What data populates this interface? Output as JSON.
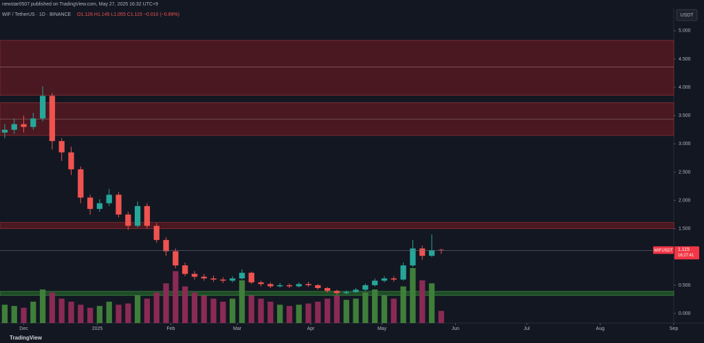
{
  "header": {
    "publisher": "newstar0507 published on TradingView.com, May 27, 2025 16:32 UTC+9",
    "symbol": "WIF / TetherUS · 1D · BINANCE",
    "quote": "O1.126 H1.145 L1.055 C1.115 −0.010 (−0.89%)"
  },
  "brand": "TradingView",
  "currency": "USDT",
  "chart_data": {
    "type": "candlestick",
    "categories": [
      null,
      null,
      null,
      null,
      null,
      null,
      null,
      null,
      null,
      null,
      null,
      null,
      null,
      null,
      null,
      null,
      null,
      null,
      null,
      null,
      null,
      null,
      null,
      null,
      null,
      null,
      null,
      null,
      null,
      null,
      null,
      null,
      null,
      null,
      null,
      null,
      null,
      null,
      null,
      null,
      null,
      null,
      null,
      null,
      null,
      null,
      null
    ],
    "open": [
      3.2,
      3.25,
      3.35,
      3.3,
      3.45,
      3.85,
      3.05,
      2.85,
      2.55,
      2.05,
      1.85,
      1.95,
      2.1,
      1.75,
      1.55,
      1.9,
      1.55,
      1.3,
      1.1,
      0.85,
      0.7,
      0.65,
      0.62,
      0.6,
      0.58,
      0.62,
      0.72,
      0.55,
      0.52,
      0.48,
      0.5,
      0.48,
      0.52,
      0.5,
      0.45,
      0.4,
      0.36,
      0.38,
      0.42,
      0.5,
      0.58,
      0.62,
      0.6,
      0.85,
      1.15,
      1.02,
      1.126
    ],
    "high": [
      3.35,
      3.45,
      3.5,
      3.55,
      4.02,
      3.9,
      3.1,
      2.95,
      2.6,
      2.1,
      2.02,
      2.2,
      2.15,
      1.8,
      1.98,
      1.95,
      1.6,
      1.35,
      1.15,
      0.9,
      0.75,
      0.7,
      0.67,
      0.64,
      0.66,
      0.78,
      0.74,
      0.58,
      0.55,
      0.54,
      0.53,
      0.55,
      0.56,
      0.52,
      0.47,
      0.42,
      0.41,
      0.45,
      0.53,
      0.62,
      0.66,
      0.66,
      0.9,
      1.3,
      1.2,
      1.4,
      1.145
    ],
    "low": [
      3.1,
      3.18,
      3.2,
      3.25,
      3.4,
      2.9,
      2.7,
      2.45,
      1.95,
      1.75,
      1.8,
      1.9,
      1.7,
      1.48,
      1.52,
      1.5,
      1.25,
      1.02,
      0.8,
      0.66,
      0.6,
      0.58,
      0.56,
      0.54,
      0.55,
      0.6,
      0.52,
      0.48,
      0.45,
      0.46,
      0.45,
      0.46,
      0.47,
      0.42,
      0.37,
      0.33,
      0.34,
      0.36,
      0.4,
      0.48,
      0.55,
      0.56,
      0.58,
      0.82,
      0.95,
      1.0,
      1.055
    ],
    "close": [
      3.25,
      3.35,
      3.3,
      3.45,
      3.85,
      3.05,
      2.85,
      2.55,
      2.05,
      1.85,
      1.95,
      2.1,
      1.75,
      1.55,
      1.9,
      1.55,
      1.3,
      1.1,
      0.85,
      0.7,
      0.65,
      0.62,
      0.6,
      0.58,
      0.62,
      0.72,
      0.55,
      0.52,
      0.48,
      0.5,
      0.48,
      0.52,
      0.5,
      0.45,
      0.4,
      0.36,
      0.38,
      0.42,
      0.5,
      0.58,
      0.62,
      0.6,
      0.85,
      1.15,
      1.02,
      1.12,
      1.115
    ],
    "volume": [
      30,
      28,
      25,
      35,
      55,
      50,
      40,
      35,
      30,
      25,
      28,
      35,
      30,
      32,
      45,
      40,
      50,
      65,
      85,
      60,
      50,
      45,
      40,
      35,
      40,
      70,
      45,
      40,
      35,
      30,
      28,
      30,
      32,
      35,
      40,
      45,
      38,
      40,
      50,
      55,
      45,
      40,
      60,
      90,
      70,
      65,
      20
    ],
    "up_color": "#26a69a",
    "down_color": "#ef5350",
    "volume_up_color": "#3f7f3a",
    "volume_down_color": "#8a2a55",
    "xlim": [
      -0.5,
      70.5
    ],
    "xticks": [
      {
        "value": 2,
        "label": "Dec"
      },
      {
        "value": 9.75,
        "label": "2025"
      },
      {
        "value": 17.5,
        "label": "Feb"
      },
      {
        "value": 24.5,
        "label": "Mar"
      },
      {
        "value": 32.25,
        "label": "Apr"
      },
      {
        "value": 39.75,
        "label": "May"
      },
      {
        "value": 47.5,
        "label": "Jun"
      },
      {
        "value": 55,
        "label": "Jul"
      },
      {
        "value": 62.75,
        "label": "Aug"
      },
      {
        "value": 70.5,
        "label": "Sep"
      }
    ],
    "ylim": [
      -0.17,
      5.4
    ],
    "yticks": [
      {
        "value": 0,
        "label": "0.000"
      },
      {
        "value": 0.5,
        "label": "0.500"
      },
      {
        "value": 1,
        "label": "1.000"
      },
      {
        "value": 1.5,
        "label": "1.500"
      },
      {
        "value": 2,
        "label": "2.000"
      },
      {
        "value": 2.5,
        "label": "2.500"
      },
      {
        "value": 3,
        "label": "3.000"
      },
      {
        "value": 3.5,
        "label": "3.500"
      },
      {
        "value": 4,
        "label": "4.000"
      },
      {
        "value": 4.5,
        "label": "4.500"
      },
      {
        "value": 5,
        "label": "5.000"
      }
    ],
    "zones": [
      {
        "from": 3.86,
        "to": 4.83,
        "mid": 4.36,
        "color": "#4a1820"
      },
      {
        "from": 3.15,
        "to": 3.73,
        "mid": 3.44,
        "color": "#4a1820"
      },
      {
        "from": 1.5,
        "to": 1.61,
        "color": "#4a1820"
      },
      {
        "from": 0.32,
        "to": 0.39,
        "color": "#1f4a26"
      }
    ],
    "price_label": {
      "symbol": "WIFUSDT",
      "countdown": "16:27:41",
      "color": "#f23645"
    }
  }
}
